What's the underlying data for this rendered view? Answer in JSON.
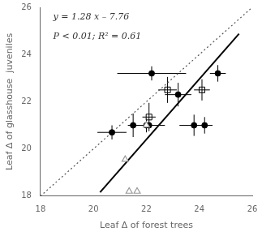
{
  "chart_data": {
    "type": "scatter",
    "xlabel": "Leaf Δ of forest trees",
    "ylabel": "Leaf Δ of glasshouse  juveniles",
    "annotations": [
      "y = 1.28 x – 7.76",
      "P < 0.01; R² = 0.61"
    ],
    "xlim": [
      18,
      26
    ],
    "ylim": [
      18,
      26
    ],
    "xticks": [
      18,
      20,
      22,
      24,
      26
    ],
    "yticks": [
      18,
      20,
      22,
      24,
      26
    ],
    "grid": false,
    "series": [
      {
        "type": "line",
        "line_style": "dotted",
        "color": "#555555",
        "x": [
          18,
          26
        ],
        "values": [
          18,
          26
        ]
      },
      {
        "type": "line",
        "line_style": "solid",
        "color": "#000000",
        "x": [
          20.25,
          25.5
        ],
        "values": [
          18.16,
          24.88
        ]
      },
      {
        "type": "scatter",
        "marker": "circle",
        "color": "#000000",
        "x": [
          20.7,
          21.5,
          22.0,
          22.1,
          22.2,
          23.2,
          23.8,
          24.2,
          24.7
        ],
        "values": [
          20.7,
          21.0,
          21.0,
          21.0,
          23.2,
          22.3,
          21.0,
          21.0,
          23.2
        ],
        "xerr": [
          0.55,
          0.0,
          0.7,
          0.0,
          1.3,
          0.5,
          0.55,
          0.3,
          0.3
        ],
        "yerr": [
          0.3,
          0.5,
          0.3,
          0.0,
          0.3,
          0.5,
          0.45,
          0.35,
          0.35
        ]
      },
      {
        "type": "scatter",
        "marker": "square_cross",
        "color": "#000000",
        "x": [
          22.1,
          22.8,
          24.1
        ],
        "values": [
          21.35,
          22.5,
          22.5
        ],
        "xerr": [
          0.25,
          0.35,
          0.3
        ],
        "yerr": [
          0.6,
          0.55,
          0.45
        ]
      },
      {
        "type": "scatter",
        "marker": "triangle_open",
        "color": "#999999",
        "x": [
          21.2,
          21.35,
          21.65,
          22.0
        ],
        "values": [
          19.55,
          18.2,
          18.2,
          21.0
        ]
      }
    ]
  }
}
